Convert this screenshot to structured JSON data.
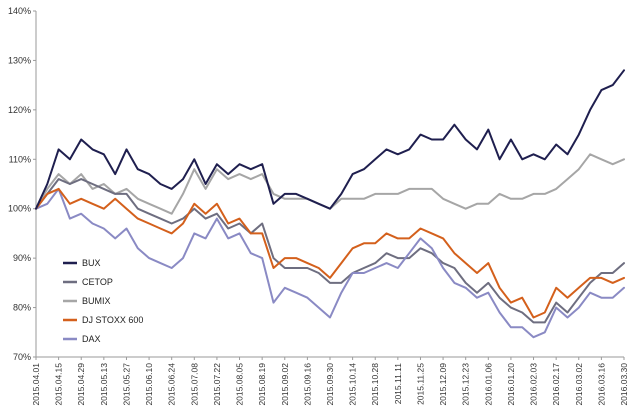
{
  "chart_data": {
    "type": "line",
    "title": "",
    "xlabel": "",
    "ylabel": "",
    "ylim": [
      70,
      140
    ],
    "yticks": [
      70,
      80,
      90,
      100,
      110,
      120,
      130,
      140
    ],
    "ytick_labels": [
      "70%",
      "80%",
      "90%",
      "100%",
      "110%",
      "120%",
      "130%",
      "140%"
    ],
    "xticks": [
      "2015.04.01",
      "2015.04.15",
      "2015.04.29",
      "2015.05.13",
      "2015.05.27",
      "2015.06.10",
      "2015.06.24",
      "2015.07.08",
      "2015.07.22",
      "2015.08.05",
      "2015.08.19",
      "2015.09.02",
      "2015.09.16",
      "2015.09.30",
      "2015.10.14",
      "2015.10.28",
      "2015.11.11",
      "2015.11.25",
      "2015.12.09",
      "2015.12.23",
      "2016.01.06",
      "2016.01.20",
      "2016.02.03",
      "2016.02.17",
      "2016.03.02",
      "2016.03.16",
      "2016.03.30"
    ],
    "grid": false,
    "legend_position": "bottom-left",
    "x": [
      "2015.04.01",
      "2015.04.08",
      "2015.04.15",
      "2015.04.22",
      "2015.04.29",
      "2015.05.06",
      "2015.05.13",
      "2015.05.20",
      "2015.05.27",
      "2015.06.03",
      "2015.06.10",
      "2015.06.17",
      "2015.06.24",
      "2015.07.01",
      "2015.07.08",
      "2015.07.15",
      "2015.07.22",
      "2015.07.29",
      "2015.08.05",
      "2015.08.12",
      "2015.08.19",
      "2015.08.26",
      "2015.09.02",
      "2015.09.09",
      "2015.09.16",
      "2015.09.23",
      "2015.09.30",
      "2015.10.07",
      "2015.10.14",
      "2015.10.21",
      "2015.10.28",
      "2015.11.04",
      "2015.11.11",
      "2015.11.18",
      "2015.11.25",
      "2015.12.02",
      "2015.12.09",
      "2015.12.16",
      "2015.12.23",
      "2015.12.30",
      "2016.01.06",
      "2016.01.13",
      "2016.01.20",
      "2016.01.27",
      "2016.02.03",
      "2016.02.10",
      "2016.02.17",
      "2016.02.24",
      "2016.03.02",
      "2016.03.09",
      "2016.03.16",
      "2016.03.23",
      "2016.03.30"
    ],
    "series": [
      {
        "name": "BUX",
        "color": "#1f1f4f",
        "values": [
          100,
          105,
          112,
          110,
          114,
          112,
          111,
          107,
          112,
          108,
          107,
          105,
          104,
          106,
          110,
          105,
          109,
          107,
          109,
          108,
          109,
          101,
          103,
          103,
          102,
          101,
          100,
          103,
          107,
          108,
          110,
          112,
          111,
          112,
          115,
          114,
          114,
          117,
          114,
          112,
          116,
          110,
          114,
          110,
          111,
          110,
          113,
          111,
          115,
          120,
          124,
          125,
          128
        ]
      },
      {
        "name": "CETOP",
        "color": "#6e6e80",
        "values": [
          100,
          103,
          106,
          105,
          106,
          105,
          104,
          103,
          103,
          100,
          99,
          98,
          97,
          98,
          100,
          98,
          99,
          96,
          97,
          95,
          97,
          90,
          88,
          88,
          88,
          87,
          85,
          85,
          87,
          88,
          89,
          91,
          90,
          90,
          92,
          91,
          89,
          88,
          85,
          83,
          85,
          82,
          80,
          79,
          77,
          77,
          81,
          79,
          82,
          85,
          87,
          87,
          89
        ]
      },
      {
        "name": "BUMIX",
        "color": "#a6a6a6",
        "values": [
          100,
          104,
          107,
          105,
          107,
          104,
          105,
          103,
          104,
          102,
          101,
          100,
          99,
          103,
          108,
          104,
          108,
          106,
          107,
          106,
          107,
          103,
          102,
          102,
          102,
          101,
          100,
          102,
          102,
          102,
          103,
          103,
          103,
          104,
          104,
          104,
          102,
          101,
          100,
          101,
          101,
          103,
          102,
          102,
          103,
          103,
          104,
          106,
          108,
          111,
          110,
          109,
          110
        ]
      },
      {
        "name": "DJ STOXX 600",
        "color": "#d4601c",
        "values": [
          100,
          103,
          104,
          101,
          102,
          101,
          100,
          102,
          100,
          98,
          97,
          96,
          95,
          97,
          101,
          99,
          101,
          97,
          98,
          95,
          95,
          88,
          90,
          90,
          89,
          88,
          86,
          89,
          92,
          93,
          93,
          95,
          94,
          94,
          96,
          95,
          94,
          91,
          89,
          87,
          89,
          84,
          81,
          82,
          78,
          79,
          84,
          82,
          84,
          86,
          86,
          85,
          86
        ]
      },
      {
        "name": "DAX",
        "color": "#8a8ac4",
        "values": [
          100,
          101,
          104,
          98,
          99,
          97,
          96,
          94,
          96,
          92,
          90,
          89,
          88,
          90,
          95,
          94,
          98,
          94,
          95,
          91,
          90,
          81,
          84,
          83,
          82,
          80,
          78,
          83,
          87,
          87,
          88,
          89,
          88,
          91,
          94,
          92,
          88,
          85,
          84,
          82,
          83,
          79,
          76,
          76,
          74,
          75,
          80,
          78,
          80,
          83,
          82,
          82,
          84
        ]
      }
    ]
  }
}
